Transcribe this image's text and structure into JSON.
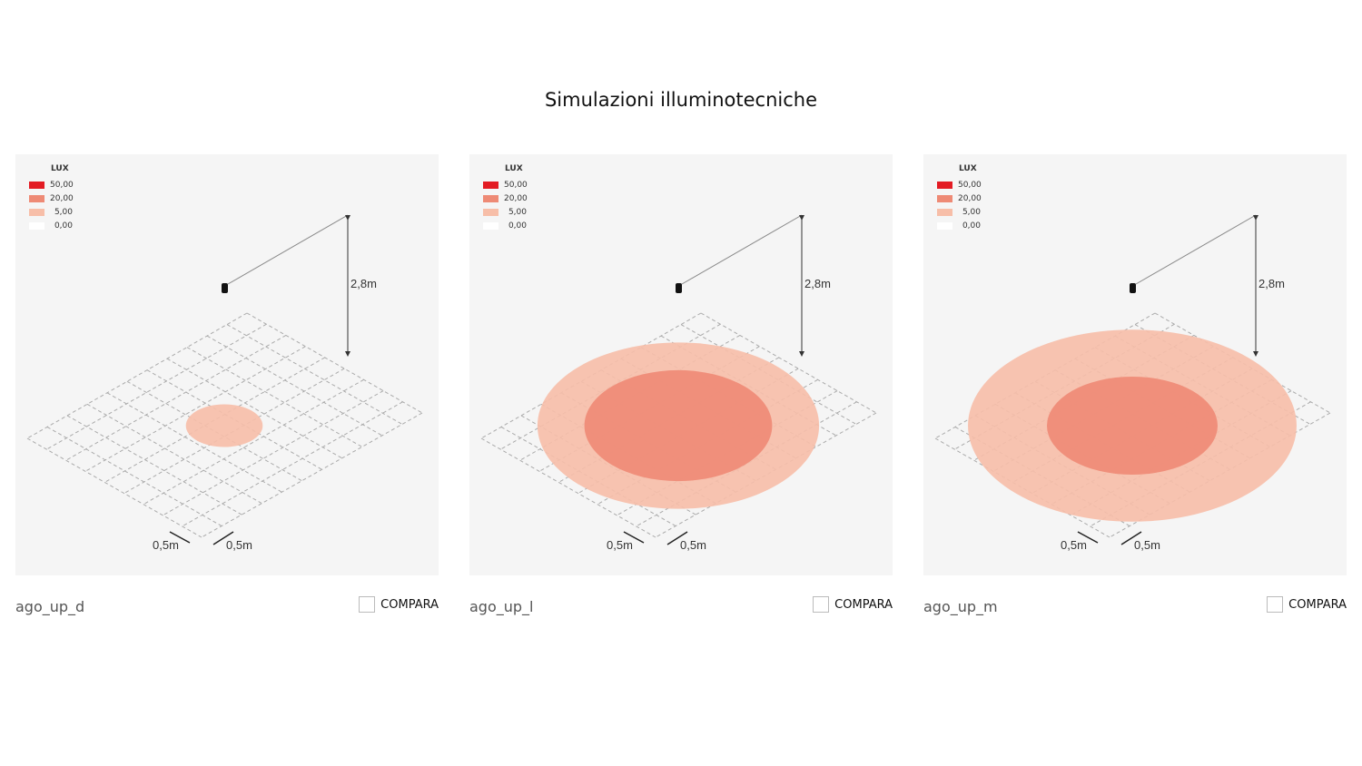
{
  "title": "Simulazioni illuminotecniche",
  "legend": {
    "header": "LUX",
    "items": [
      {
        "value": "50,00",
        "color": "#e31b23"
      },
      {
        "value": "20,00",
        "color": "#ee8a75"
      },
      {
        "value": "5,00",
        "color": "#f7bea8"
      },
      {
        "value": "0,00",
        "color": "#ffffff"
      }
    ]
  },
  "dimensions": {
    "height": "2,8m",
    "grid_a": "0,5m",
    "grid_b": "0,5m"
  },
  "compare_label": "COMPARA",
  "panels": [
    {
      "name": "ago_up_d",
      "zones": [
        {
          "lux": "5,00",
          "rx_m": 0.9,
          "ry_m": 0.5
        }
      ]
    },
    {
      "name": "ago_up_l",
      "zones": [
        {
          "lux": "5,00",
          "rx_m": 3.3,
          "ry_m": 1.95
        },
        {
          "lux": "20,00",
          "rx_m": 2.2,
          "ry_m": 1.3
        }
      ]
    },
    {
      "name": "ago_up_m",
      "zones": [
        {
          "lux": "5,00",
          "rx_m": 3.85,
          "ry_m": 2.25
        },
        {
          "lux": "20,00",
          "rx_m": 2.0,
          "ry_m": 1.15
        }
      ]
    }
  ]
}
